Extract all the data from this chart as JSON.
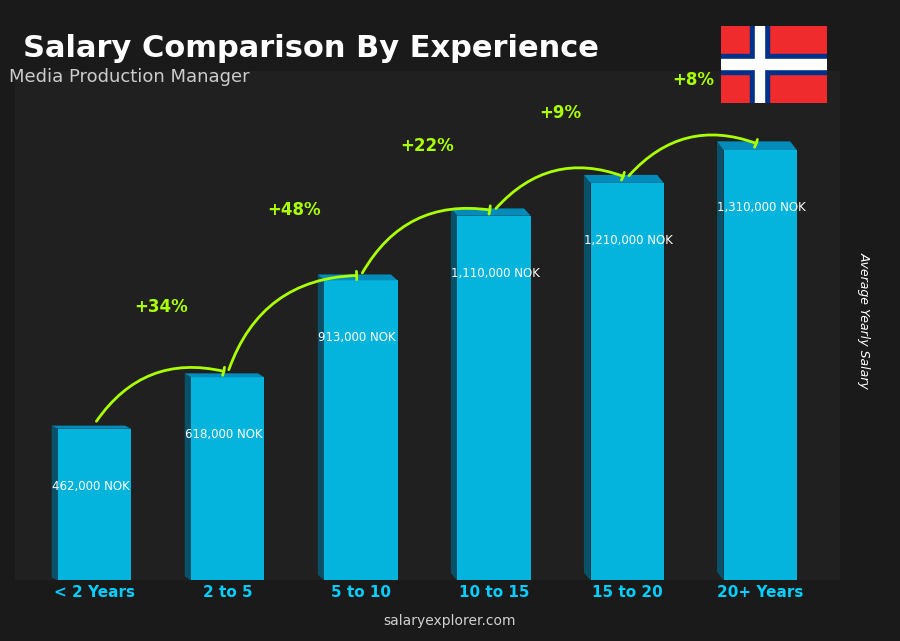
{
  "title": "Salary Comparison By Experience",
  "subtitle": "Media Production Manager",
  "categories": [
    "< 2 Years",
    "2 to 5",
    "5 to 10",
    "10 to 15",
    "15 to 20",
    "20+ Years"
  ],
  "values": [
    462000,
    618000,
    913000,
    1110000,
    1210000,
    1310000
  ],
  "value_labels": [
    "462,000 NOK",
    "618,000 NOK",
    "913,000 NOK",
    "1,110,000 NOK",
    "1,210,000 NOK",
    "1,310,000 NOK"
  ],
  "pct_labels": [
    "+34%",
    "+48%",
    "+22%",
    "+9%",
    "+8%"
  ],
  "bar_color_top": "#00CFFF",
  "bar_color_mid": "#0099CC",
  "bar_color_dark": "#006688",
  "bg_color": "#2a2a2a",
  "title_color": "#ffffff",
  "subtitle_color": "#cccccc",
  "label_color": "#ffffff",
  "pct_color": "#aaff00",
  "tick_color": "#00CFFF",
  "ylabel_text": "Average Yearly Salary",
  "watermark": "salaryexplorer.com",
  "ylim": [
    0,
    1550000
  ]
}
